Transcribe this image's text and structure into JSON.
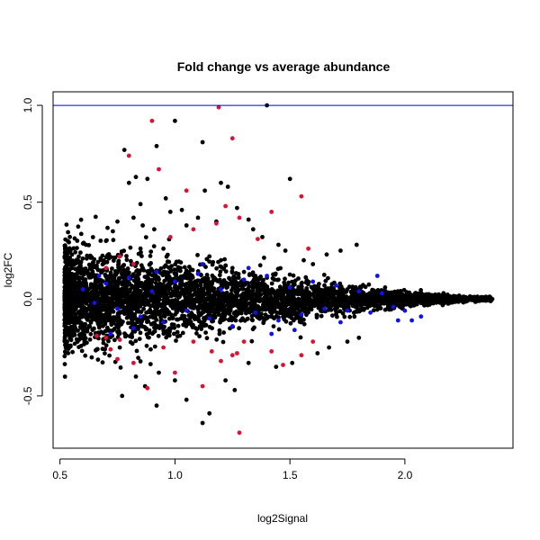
{
  "chart_data": {
    "type": "scatter",
    "title": "Fold change vs average abundance",
    "xlabel": "log2Signal",
    "ylabel": "log2FC",
    "xlim": [
      0.47,
      2.47
    ],
    "ylim": [
      -0.77,
      1.07
    ],
    "x_ticks": [
      "0.5",
      "1.0",
      "1.5",
      "2.0"
    ],
    "y_ticks": [
      "-0.5",
      "0.0",
      "0.5",
      "1.0"
    ],
    "reference_line": {
      "y": 1.0,
      "color": "#0000cc"
    },
    "grid": false,
    "legend": "none",
    "colors": {
      "all": "#000000",
      "highlight_red": "#dd1133",
      "highlight_blue": "#1111ee"
    },
    "series": [
      {
        "color": "black",
        "points": [
          [
            0.78,
            0.77
          ],
          [
            0.83,
            0.63
          ],
          [
            0.8,
            0.6
          ],
          [
            0.88,
            0.62
          ],
          [
            0.92,
            0.79
          ],
          [
            0.96,
            0.52
          ],
          [
            0.85,
            0.49
          ],
          [
            1.0,
            0.92
          ],
          [
            1.12,
            0.81
          ],
          [
            1.4,
            1.0
          ],
          [
            1.2,
            0.6
          ],
          [
            1.13,
            0.56
          ],
          [
            1.23,
            0.58
          ],
          [
            1.5,
            0.62
          ],
          [
            1.03,
            0.46
          ],
          [
            0.7,
            0.3
          ],
          [
            0.73,
            0.35
          ],
          [
            0.75,
            0.4
          ],
          [
            0.82,
            0.42
          ],
          [
            0.86,
            0.38
          ],
          [
            0.91,
            0.36
          ],
          [
            0.98,
            0.45
          ],
          [
            1.05,
            0.38
          ],
          [
            1.1,
            0.42
          ],
          [
            1.18,
            0.4
          ],
          [
            1.27,
            0.47
          ],
          [
            1.32,
            0.41
          ],
          [
            1.34,
            0.36
          ],
          [
            1.38,
            0.32
          ],
          [
            1.45,
            0.28
          ],
          [
            1.48,
            0.25
          ],
          [
            1.56,
            0.2
          ],
          [
            1.6,
            0.18
          ],
          [
            1.66,
            0.23
          ],
          [
            1.72,
            0.25
          ],
          [
            1.79,
            0.28
          ],
          [
            0.92,
            -0.55
          ],
          [
            1.05,
            -0.52
          ],
          [
            1.12,
            -0.64
          ],
          [
            1.15,
            -0.59
          ],
          [
            0.77,
            -0.5
          ],
          [
            0.87,
            -0.45
          ],
          [
            1.22,
            -0.42
          ],
          [
            1.26,
            -0.47
          ],
          [
            1.0,
            -0.42
          ],
          [
            0.83,
            -0.4
          ],
          [
            0.93,
            -0.38
          ],
          [
            1.32,
            -0.33
          ],
          [
            1.44,
            -0.35
          ],
          [
            1.51,
            -0.33
          ],
          [
            1.62,
            -0.28
          ],
          [
            1.67,
            -0.25
          ],
          [
            1.75,
            -0.22
          ],
          [
            1.8,
            -0.2
          ],
          [
            0.95,
            0.26
          ],
          [
            1.15,
            0.22
          ],
          [
            1.2,
            0.2
          ],
          [
            1.25,
            0.16
          ],
          [
            1.3,
            0.14
          ],
          [
            1.35,
            0.12
          ],
          [
            1.4,
            0.11
          ],
          [
            1.45,
            0.1
          ],
          [
            1.55,
            0.08
          ],
          [
            1.65,
            0.07
          ],
          [
            1.75,
            0.05
          ],
          [
            1.85,
            0.03
          ],
          [
            1.95,
            0.02
          ],
          [
            2.05,
            0.01
          ],
          [
            2.15,
            0.0
          ],
          [
            2.25,
            0.0
          ],
          [
            2.31,
            -0.01
          ],
          [
            2.38,
            0.0
          ]
        ]
      },
      {
        "color": "red",
        "points": [
          [
            0.9,
            0.92
          ],
          [
            1.19,
            0.99
          ],
          [
            1.25,
            0.83
          ],
          [
            0.8,
            0.74
          ],
          [
            0.93,
            0.67
          ],
          [
            1.05,
            0.56
          ],
          [
            1.55,
            0.53
          ],
          [
            1.42,
            0.45
          ],
          [
            1.22,
            0.48
          ],
          [
            1.28,
            0.42
          ],
          [
            1.18,
            0.39
          ],
          [
            0.98,
            0.32
          ],
          [
            1.08,
            0.36
          ],
          [
            1.36,
            0.31
          ],
          [
            1.58,
            0.26
          ],
          [
            0.76,
            0.22
          ],
          [
            0.82,
            0.18
          ],
          [
            0.7,
            0.16
          ],
          [
            1.3,
            -0.22
          ],
          [
            1.42,
            -0.27
          ],
          [
            1.55,
            -0.29
          ],
          [
            1.6,
            -0.22
          ],
          [
            1.47,
            -0.34
          ],
          [
            1.2,
            -0.32
          ],
          [
            1.27,
            -0.28
          ],
          [
            1.12,
            -0.45
          ],
          [
            0.88,
            -0.46
          ],
          [
            1.0,
            -0.38
          ],
          [
            0.82,
            -0.33
          ],
          [
            0.75,
            -0.31
          ],
          [
            0.7,
            -0.2
          ],
          [
            0.66,
            -0.19
          ],
          [
            0.95,
            -0.25
          ],
          [
            1.08,
            -0.22
          ],
          [
            1.25,
            -0.29
          ],
          [
            1.28,
            -0.69
          ],
          [
            1.16,
            -0.27
          ],
          [
            0.72,
            -0.26
          ],
          [
            0.76,
            -0.21
          ]
        ]
      },
      {
        "color": "blue",
        "points": [
          [
            0.6,
            0.05
          ],
          [
            0.65,
            -0.02
          ],
          [
            0.7,
            0.08
          ],
          [
            0.75,
            -0.05
          ],
          [
            0.8,
            0.11
          ],
          [
            0.85,
            -0.09
          ],
          [
            0.9,
            0.04
          ],
          [
            0.95,
            -0.12
          ],
          [
            1.0,
            0.09
          ],
          [
            1.05,
            -0.06
          ],
          [
            1.1,
            0.13
          ],
          [
            1.15,
            -0.1
          ],
          [
            1.2,
            0.05
          ],
          [
            1.25,
            -0.14
          ],
          [
            1.3,
            0.1
          ],
          [
            1.35,
            -0.07
          ],
          [
            1.4,
            0.12
          ],
          [
            1.45,
            -0.11
          ],
          [
            1.5,
            0.06
          ],
          [
            1.55,
            -0.08
          ],
          [
            1.6,
            0.09
          ],
          [
            1.65,
            -0.05
          ],
          [
            1.7,
            0.07
          ],
          [
            1.75,
            -0.06
          ],
          [
            1.8,
            0.04
          ],
          [
            1.85,
            -0.07
          ],
          [
            1.9,
            0.03
          ],
          [
            1.95,
            -0.04
          ],
          [
            2.0,
            -0.06
          ],
          [
            2.03,
            -0.11
          ],
          [
            2.07,
            -0.09
          ],
          [
            1.97,
            -0.11
          ],
          [
            1.88,
            0.12
          ],
          [
            1.72,
            -0.12
          ],
          [
            1.52,
            -0.16
          ],
          [
            1.32,
            0.16
          ],
          [
            1.12,
            0.18
          ],
          [
            0.92,
            0.14
          ],
          [
            0.72,
            -0.18
          ],
          [
            0.82,
            -0.15
          ],
          [
            0.67,
            0.12
          ],
          [
            1.42,
            -0.18
          ]
        ]
      }
    ]
  }
}
